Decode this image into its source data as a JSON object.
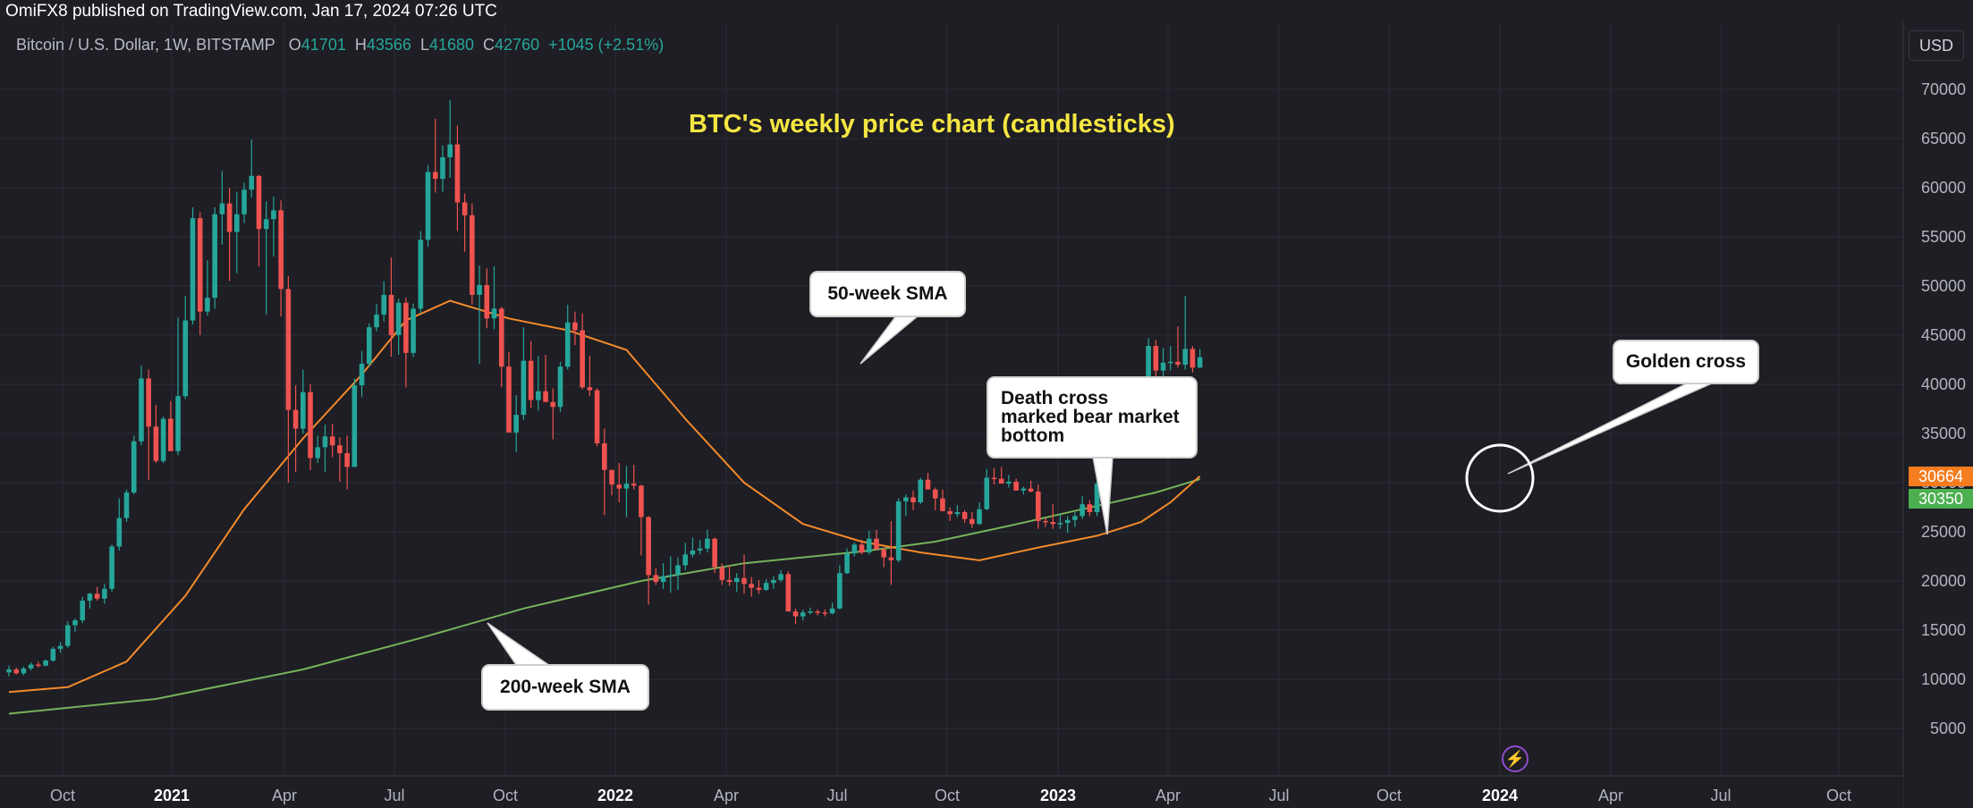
{
  "publisher": "OmiFX8 published on TradingView.com, Jan 17, 2024 07:26 UTC",
  "symbol": "Bitcoin / U.S. Dollar, 1W, BITSTAMP",
  "ohlc": {
    "o_label": "O",
    "o": "41701",
    "h_label": "H",
    "h": "43566",
    "l_label": "L",
    "l": "41680",
    "c_label": "C",
    "c": "42760",
    "change": "+1045 (+2.51%)"
  },
  "currency_button": "USD",
  "lightning_icon": "lightning-icon",
  "colors": {
    "background": "#1e1e24",
    "up": "#26a69a",
    "down": "#ef5350",
    "sma50": "#f58a2a",
    "sma200": "#76b35a",
    "title": "#f5e642",
    "grid": "#2a2e39"
  },
  "callouts": {
    "sma50": "50-week SMA",
    "sma200": "200-week SMA",
    "death_cross": [
      "Death cross",
      "marked bear market",
      "bottom"
    ],
    "golden_cross": "Golden cross"
  },
  "price_tags": {
    "sma50": "30664",
    "sma200": "30350"
  },
  "chart_data": {
    "type": "candlestick",
    "title": "BTC's weekly price chart (candlesticks)",
    "y_axis": {
      "ticks": [
        70000,
        65000,
        60000,
        55000,
        50000,
        45000,
        40000,
        35000,
        30000,
        25000,
        20000,
        15000,
        10000,
        5000
      ],
      "ylim": [
        0,
        73000
      ],
      "position": "right"
    },
    "x_axis": {
      "labels": [
        "Oct",
        "2021",
        "Apr",
        "Jul",
        "Oct",
        "2022",
        "Apr",
        "Jul",
        "Oct",
        "2023",
        "Apr",
        "Jul",
        "Oct",
        "2024",
        "Apr",
        "Jul",
        "Oct"
      ],
      "bold": [
        "2021",
        "2022",
        "2023",
        "2024"
      ]
    },
    "grid": true,
    "candles_ohlc": [
      [
        10700,
        11400,
        10300,
        11000
      ],
      [
        11000,
        11200,
        10500,
        10600
      ],
      [
        10600,
        11300,
        10400,
        11100
      ],
      [
        11100,
        11700,
        10900,
        11500
      ],
      [
        11500,
        11800,
        11200,
        11400
      ],
      [
        11400,
        12000,
        11300,
        11900
      ],
      [
        11900,
        13300,
        11800,
        13100
      ],
      [
        13100,
        13800,
        12700,
        13400
      ],
      [
        13400,
        15900,
        13200,
        15500
      ],
      [
        15500,
        16200,
        14800,
        16000
      ],
      [
        16000,
        18400,
        15700,
        18000
      ],
      [
        18000,
        18800,
        17200,
        18700
      ],
      [
        18700,
        19400,
        18000,
        18200
      ],
      [
        18200,
        19700,
        17700,
        19200
      ],
      [
        19200,
        23700,
        18900,
        23500
      ],
      [
        23500,
        28400,
        23100,
        26400
      ],
      [
        26400,
        29300,
        26000,
        29000
      ],
      [
        29000,
        34800,
        28800,
        34200
      ],
      [
        34200,
        41900,
        33800,
        40600
      ],
      [
        40600,
        41500,
        30300,
        35700
      ],
      [
        35700,
        37900,
        32000,
        32200
      ],
      [
        32200,
        36700,
        32000,
        36500
      ],
      [
        36500,
        38300,
        33300,
        33200
      ],
      [
        33200,
        46800,
        32800,
        38800
      ],
      [
        38800,
        49000,
        38500,
        46500
      ],
      [
        46500,
        58000,
        46100,
        56900
      ],
      [
        56900,
        57500,
        45000,
        47400
      ],
      [
        47400,
        52600,
        47000,
        48800
      ],
      [
        48800,
        58000,
        47700,
        57300
      ],
      [
        57300,
        61700,
        54200,
        58400
      ],
      [
        58400,
        60000,
        50500,
        55500
      ],
      [
        55500,
        59600,
        51300,
        57300
      ],
      [
        57300,
        60500,
        56400,
        59800
      ],
      [
        59800,
        64900,
        59000,
        61200
      ],
      [
        61200,
        61300,
        52000,
        55800
      ],
      [
        55800,
        58600,
        47100,
        56800
      ],
      [
        56800,
        59100,
        53000,
        57700
      ],
      [
        57700,
        58700,
        46900,
        49700
      ],
      [
        49700,
        51000,
        30000,
        37400
      ],
      [
        37400,
        39900,
        31100,
        35500
      ],
      [
        35500,
        41500,
        35000,
        39200
      ],
      [
        39200,
        40000,
        31300,
        32500
      ],
      [
        32500,
        34800,
        32000,
        33600
      ],
      [
        33600,
        35900,
        31100,
        34700
      ],
      [
        34700,
        36000,
        32600,
        33800
      ],
      [
        33800,
        34600,
        30100,
        33000
      ],
      [
        33000,
        34800,
        29300,
        31600
      ],
      [
        31600,
        40600,
        31600,
        39900
      ],
      [
        39900,
        43400,
        38700,
        42100
      ],
      [
        42100,
        46200,
        41800,
        45800
      ],
      [
        45800,
        48200,
        45400,
        47100
      ],
      [
        47100,
        50500,
        46400,
        49100
      ],
      [
        49100,
        52900,
        42800,
        45000
      ],
      [
        45000,
        48700,
        43000,
        48300
      ],
      [
        48300,
        48800,
        39700,
        43200
      ],
      [
        43200,
        48200,
        42800,
        47700
      ],
      [
        47700,
        55600,
        47200,
        54700
      ],
      [
        54700,
        62300,
        54000,
        61600
      ],
      [
        61600,
        67000,
        59500,
        60900
      ],
      [
        60900,
        64300,
        59600,
        63100
      ],
      [
        63100,
        68900,
        61000,
        64400
      ],
      [
        64400,
        66300,
        55600,
        58500
      ],
      [
        58500,
        59400,
        53500,
        57200
      ],
      [
        57200,
        58400,
        48100,
        49100
      ],
      [
        49100,
        52100,
        42100,
        50100
      ],
      [
        50100,
        51800,
        45700,
        46700
      ],
      [
        46700,
        52000,
        45600,
        47700
      ],
      [
        47700,
        47900,
        39700,
        41800
      ],
      [
        41800,
        43300,
        35600,
        35100
      ],
      [
        35100,
        38900,
        33100,
        36900
      ],
      [
        36900,
        45800,
        36400,
        42400
      ],
      [
        42400,
        44400,
        37600,
        38400
      ],
      [
        38400,
        42900,
        37300,
        39300
      ],
      [
        39300,
        43000,
        38600,
        38200
      ],
      [
        38200,
        39600,
        34400,
        37700
      ],
      [
        37700,
        42300,
        37200,
        41800
      ],
      [
        41800,
        48100,
        41500,
        46300
      ],
      [
        46300,
        47400,
        44000,
        45500
      ],
      [
        45500,
        47200,
        39500,
        39700
      ],
      [
        39700,
        42900,
        38800,
        39400
      ],
      [
        39400,
        39600,
        33700,
        34000
      ],
      [
        34000,
        35500,
        26700,
        31300
      ],
      [
        31300,
        30700,
        28700,
        29800
      ],
      [
        29800,
        32000,
        28000,
        29400
      ],
      [
        29400,
        31700,
        26500,
        29900
      ],
      [
        29900,
        31800,
        29300,
        29700
      ],
      [
        29700,
        29800,
        22600,
        26500
      ],
      [
        26500,
        26600,
        17600,
        20600
      ],
      [
        20600,
        21300,
        19600,
        19900
      ],
      [
        19900,
        21800,
        19200,
        20500
      ],
      [
        20500,
        22500,
        18800,
        20600
      ],
      [
        20600,
        22400,
        19100,
        21600
      ],
      [
        21600,
        23900,
        21100,
        22700
      ],
      [
        22700,
        24400,
        22400,
        23100
      ],
      [
        23100,
        24200,
        22700,
        23300
      ],
      [
        23300,
        25200,
        22900,
        24300
      ],
      [
        24300,
        24400,
        20800,
        21400
      ],
      [
        21400,
        21800,
        19600,
        20100
      ],
      [
        20100,
        21600,
        19500,
        19900
      ],
      [
        19900,
        20800,
        18900,
        20300
      ],
      [
        20300,
        22700,
        18700,
        19700
      ],
      [
        19700,
        20400,
        18400,
        19300
      ],
      [
        19300,
        20100,
        18700,
        19100
      ],
      [
        19100,
        20200,
        19000,
        19800
      ],
      [
        19800,
        20500,
        19200,
        20100
      ],
      [
        20100,
        21100,
        19900,
        20700
      ],
      [
        20700,
        21000,
        17300,
        16900
      ],
      [
        16900,
        17200,
        15600,
        16400
      ],
      [
        16400,
        17100,
        16000,
        16800
      ],
      [
        16800,
        17300,
        16600,
        16900
      ],
      [
        16900,
        17100,
        16500,
        16800
      ],
      [
        16800,
        17100,
        16400,
        16700
      ],
      [
        16700,
        17800,
        16600,
        17200
      ],
      [
        17200,
        21600,
        17100,
        20800
      ],
      [
        20800,
        23300,
        20700,
        22800
      ],
      [
        22800,
        23900,
        22500,
        23700
      ],
      [
        23700,
        24200,
        22700,
        22900
      ],
      [
        22900,
        25100,
        22700,
        24300
      ],
      [
        24300,
        25200,
        23400,
        23200
      ],
      [
        23200,
        23400,
        21400,
        22400
      ],
      [
        22400,
        26100,
        19600,
        22100
      ],
      [
        22100,
        28400,
        21900,
        28100
      ],
      [
        28100,
        28800,
        26600,
        28500
      ],
      [
        28500,
        29200,
        27200,
        28000
      ],
      [
        28000,
        30500,
        27800,
        30300
      ],
      [
        30300,
        31000,
        29400,
        29300
      ],
      [
        29300,
        29500,
        27200,
        28400
      ],
      [
        28400,
        29300,
        27800,
        27100
      ],
      [
        27100,
        27500,
        26100,
        26800
      ],
      [
        26800,
        27700,
        26500,
        27000
      ],
      [
        27000,
        27200,
        25900,
        26300
      ],
      [
        26300,
        27000,
        25400,
        25800
      ],
      [
        25800,
        28000,
        25700,
        27300
      ],
      [
        27300,
        31400,
        27200,
        30500
      ],
      [
        30500,
        31500,
        29800,
        30400
      ],
      [
        30400,
        31600,
        30000,
        29900
      ],
      [
        29900,
        30800,
        29500,
        30100
      ],
      [
        30100,
        30400,
        29200,
        29200
      ],
      [
        29200,
        29600,
        28800,
        29400
      ],
      [
        29400,
        30200,
        29000,
        29100
      ],
      [
        29100,
        29800,
        25300,
        26100
      ],
      [
        26100,
        26400,
        25500,
        26000
      ],
      [
        26000,
        27800,
        25300,
        25800
      ],
      [
        25800,
        26900,
        25300,
        25900
      ],
      [
        25900,
        26600,
        24900,
        26200
      ],
      [
        26200,
        27000,
        25500,
        26600
      ],
      [
        26600,
        28600,
        26300,
        27800
      ],
      [
        27800,
        28200,
        26600,
        27000
      ],
      [
        27000,
        30200,
        26600,
        29900
      ],
      [
        29900,
        35200,
        29700,
        34500
      ],
      [
        34500,
        35900,
        34000,
        34100
      ],
      [
        34100,
        37900,
        33900,
        35000
      ],
      [
        35000,
        37900,
        34800,
        37300
      ],
      [
        37300,
        38100,
        35500,
        37700
      ],
      [
        37700,
        40000,
        37600,
        39500
      ],
      [
        39500,
        44700,
        39300,
        43900
      ],
      [
        43900,
        44500,
        40300,
        41400
      ],
      [
        41400,
        43700,
        40500,
        42200
      ],
      [
        42200,
        43900,
        41400,
        42300
      ],
      [
        42300,
        45900,
        41700,
        42000
      ],
      [
        42000,
        49000,
        41500,
        43600
      ],
      [
        43600,
        43900,
        41200,
        41700
      ],
      [
        41700,
        43566,
        41680,
        42760
      ]
    ],
    "series": [
      {
        "name": "50-week SMA",
        "points": [
          [
            0,
            8700
          ],
          [
            8,
            9200
          ],
          [
            16,
            11800
          ],
          [
            24,
            18500
          ],
          [
            32,
            27300
          ],
          [
            40,
            34500
          ],
          [
            48,
            41000
          ],
          [
            54,
            46500
          ],
          [
            60,
            48500
          ],
          [
            68,
            46700
          ],
          [
            76,
            45500
          ],
          [
            84,
            43500
          ],
          [
            92,
            36500
          ],
          [
            100,
            30000
          ],
          [
            108,
            25800
          ],
          [
            116,
            24000
          ],
          [
            124,
            22900
          ],
          [
            132,
            22100
          ],
          [
            140,
            23400
          ],
          [
            148,
            24600
          ],
          [
            154,
            26000
          ],
          [
            158,
            28000
          ],
          [
            162,
            30664
          ]
        ]
      },
      {
        "name": "200-week SMA",
        "points": [
          [
            0,
            6500
          ],
          [
            20,
            8000
          ],
          [
            40,
            11000
          ],
          [
            56,
            14200
          ],
          [
            70,
            17200
          ],
          [
            86,
            20000
          ],
          [
            100,
            21800
          ],
          [
            116,
            23000
          ],
          [
            126,
            24000
          ],
          [
            136,
            25600
          ],
          [
            146,
            27300
          ],
          [
            156,
            29000
          ],
          [
            162,
            30350
          ]
        ]
      }
    ]
  }
}
